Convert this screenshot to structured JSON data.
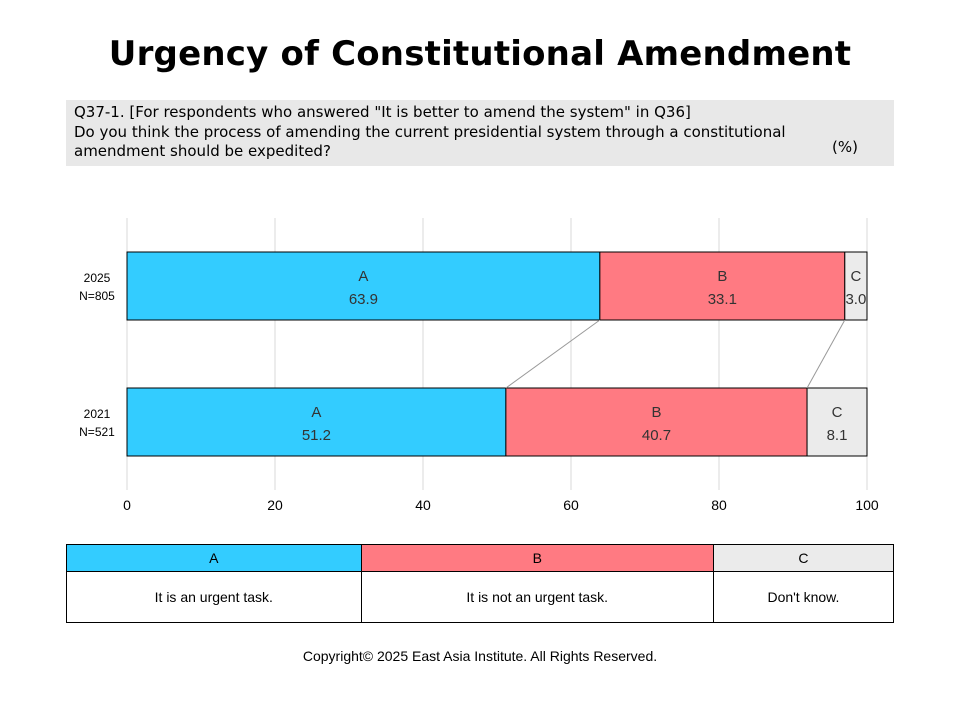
{
  "title": "Urgency of Constitutional Amendment",
  "question": {
    "line1": "Q37-1. [For respondents who answered \"It is better to amend the system\" in Q36]",
    "line2": "Do you think the process of amending the current presidential system through a constitutional amendment should be expedited?",
    "unit": "(%)"
  },
  "chart_data": {
    "type": "bar",
    "orientation": "horizontal",
    "stacked": true,
    "categories": [
      {
        "year": "2025",
        "n": "N=805"
      },
      {
        "year": "2021",
        "n": "N=521"
      }
    ],
    "series": [
      {
        "name": "A",
        "color": "#33ccff",
        "values": [
          63.9,
          51.2
        ],
        "labels": [
          "63.9",
          "51.2"
        ]
      },
      {
        "name": "B",
        "color": "#ff7a82",
        "values": [
          33.1,
          40.7
        ],
        "labels": [
          "33.1",
          "40.7"
        ]
      },
      {
        "name": "C",
        "color": "#ebebeb",
        "values": [
          3.0,
          8.1
        ],
        "labels": [
          "3.0",
          "8.1"
        ]
      }
    ],
    "xlim": [
      0,
      100
    ],
    "xticks": [
      "0",
      "20",
      "40",
      "60",
      "80",
      "100"
    ],
    "grid": true
  },
  "legend": {
    "headers": [
      {
        "label": "A",
        "color": "#33ccff"
      },
      {
        "label": "B",
        "color": "#ff7a82"
      },
      {
        "label": "C",
        "color": "#ebebeb"
      }
    ],
    "descriptions": [
      "It is an urgent task.",
      "It is not an urgent task.",
      "Don't know."
    ]
  },
  "footer": "Copyright© 2025 East Asia Institute. All Rights Reserved."
}
